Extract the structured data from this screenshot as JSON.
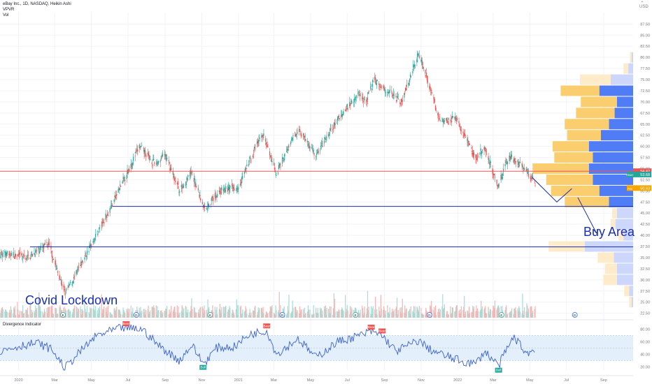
{
  "header": {
    "title": "eBay Inc., 1D, NASDAQ, Heikin Ashi",
    "indicator1": "VPVR",
    "indicator2": "Vol"
  },
  "toolbar": {
    "usd_label": "USD",
    "plus_icon": "plus-icon"
  },
  "colors": {
    "up": "#26a69a",
    "down": "#ef5350",
    "vpvr_up": "#f9c95f",
    "vpvr_down": "#3d6ef5",
    "vpvr_up_light": "#fde9c4",
    "vpvr_down_light": "#c6d3fb",
    "hline": "#1a2fb0",
    "rsi_line": "#3a5fd9",
    "rsi_band": "#e3f0fb",
    "annot": "#1a2fb0",
    "poc": "#ef5350",
    "ebay_badge": "#26a69a",
    "fee_badge": "#f7a600"
  },
  "annotations": {
    "covid": "Covid Lockdown",
    "buy_area": "Buy Area"
  },
  "price_badges": [
    {
      "price": 54.42,
      "text": "54.42",
      "color": "#ef5350"
    },
    {
      "price": 53.68,
      "text": "53.68",
      "label": "EBAY",
      "color": "#26a69a"
    },
    {
      "price": 50.63,
      "text": "50.63",
      "label": "Fee",
      "color": "#f7a600"
    }
  ],
  "divergence_panel": {
    "title": "Divergence Indicator",
    "signals": [
      {
        "label": "Bear",
        "date": "2020-06-28"
      },
      {
        "label": "Bull",
        "date": "2020-11-03"
      },
      {
        "label": "Bear",
        "date": "2021-02-17"
      },
      {
        "label": "Bear",
        "date": "2021-08-10"
      },
      {
        "label": "Bear",
        "date": "2021-08-28"
      },
      {
        "label": "Bull",
        "date": "2022-03-10"
      }
    ]
  },
  "event_markers": [
    {
      "letter": "E",
      "kind": "earnings"
    },
    {
      "letter": "D",
      "kind": "dividend"
    }
  ],
  "chart_data": {
    "type": "candlestick",
    "title": "eBay Inc., 1D, NASDAQ, Heikin Ashi",
    "y_axis": {
      "ticks": [
        "22.50",
        "25.00",
        "27.50",
        "30.00",
        "32.50",
        "35.00",
        "37.50",
        "40.00",
        "42.50",
        "45.00",
        "47.50",
        "50.00",
        "52.50",
        "55.00",
        "57.50",
        "60.00",
        "62.50",
        "65.00",
        "67.50",
        "70.00",
        "72.50",
        "75.00",
        "77.50",
        "80.00",
        "82.50",
        "85.00",
        "87.50"
      ],
      "range": [
        21.5,
        88.5
      ],
      "side": "right"
    },
    "x_axis": {
      "ticks": [
        {
          "date": "2020-01-01",
          "label": "2020"
        },
        {
          "date": "2020-03-01",
          "label": "Mar"
        },
        {
          "date": "2020-05-01",
          "label": "May"
        },
        {
          "date": "2020-07-01",
          "label": "Jul"
        },
        {
          "date": "2020-09-01",
          "label": "Sep"
        },
        {
          "date": "2020-11-01",
          "label": "Nov"
        },
        {
          "date": "2021-01-01",
          "label": "2021"
        },
        {
          "date": "2021-03-01",
          "label": "Mar"
        },
        {
          "date": "2021-05-01",
          "label": "May"
        },
        {
          "date": "2021-07-01",
          "label": "Jul"
        },
        {
          "date": "2021-09-01",
          "label": "Sep"
        },
        {
          "date": "2021-11-01",
          "label": "Nov"
        },
        {
          "date": "2022-01-01",
          "label": "2022"
        },
        {
          "date": "2022-03-01",
          "label": "Mar"
        },
        {
          "date": "2022-05-01",
          "label": "May"
        },
        {
          "date": "2022-07-01",
          "label": "Jul"
        },
        {
          "date": "2022-09-01",
          "label": "Sep"
        }
      ],
      "range": [
        "2019-12-01",
        "2022-10-20"
      ]
    },
    "price_path": [
      [
        "2019-12-01",
        36.0
      ],
      [
        "2020-01-15",
        35.0
      ],
      [
        "2020-02-20",
        38.0
      ],
      [
        "2020-03-18",
        27.0
      ],
      [
        "2020-04-01",
        30.0
      ],
      [
        "2020-05-01",
        38.0
      ],
      [
        "2020-06-01",
        46.0
      ],
      [
        "2020-07-20",
        60.0
      ],
      [
        "2020-08-15",
        56.0
      ],
      [
        "2020-09-01",
        58.0
      ],
      [
        "2020-09-25",
        50.0
      ],
      [
        "2020-10-15",
        54.0
      ],
      [
        "2020-11-05",
        46.0
      ],
      [
        "2020-12-01",
        50.0
      ],
      [
        "2020-12-31",
        51.0
      ],
      [
        "2021-02-10",
        63.0
      ],
      [
        "2021-03-05",
        54.0
      ],
      [
        "2021-04-10",
        64.0
      ],
      [
        "2021-05-10",
        58.0
      ],
      [
        "2021-06-15",
        66.0
      ],
      [
        "2021-07-20",
        72.0
      ],
      [
        "2021-08-01",
        70.0
      ],
      [
        "2021-08-15",
        75.0
      ],
      [
        "2021-09-10",
        72.0
      ],
      [
        "2021-09-30",
        70.0
      ],
      [
        "2021-10-27",
        81.0
      ],
      [
        "2021-11-10",
        76.0
      ],
      [
        "2021-12-01",
        66.0
      ],
      [
        "2021-12-31",
        66.0
      ],
      [
        "2022-01-31",
        57.0
      ],
      [
        "2022-02-15",
        60.0
      ],
      [
        "2022-03-08",
        51.0
      ],
      [
        "2022-03-29",
        58.0
      ],
      [
        "2022-04-20",
        55.0
      ],
      [
        "2022-05-10",
        52.0
      ]
    ],
    "projection_path": [
      [
        "2022-05-05",
        53.0
      ],
      [
        "2022-06-15",
        47.5
      ],
      [
        "2022-07-10",
        50.5
      ]
    ],
    "buy_arrow": [
      [
        "2022-07-20",
        48.5
      ],
      [
        "2022-08-20",
        40.5
      ]
    ],
    "horizontal_lines": [
      {
        "price": 46.5,
        "from": "2020-06-05",
        "color": "#1a2fb0"
      },
      {
        "price": 37.4,
        "from": "2020-01-20",
        "color": "#1a2fb0"
      },
      {
        "price": 54.42,
        "from": "2019-12-01",
        "color": "#ef5350"
      }
    ],
    "volume_profile": [
      {
        "price": 80.0,
        "up": 0.02,
        "down": 0.02,
        "light": true
      },
      {
        "price": 77.5,
        "up": 0.06,
        "down": 0.06,
        "light": true
      },
      {
        "price": 75.0,
        "up": 0.38,
        "down": 0.28,
        "light": true
      },
      {
        "price": 72.5,
        "up": 0.48,
        "down": 0.42
      },
      {
        "price": 70.0,
        "up": 0.45,
        "down": 0.2
      },
      {
        "price": 67.5,
        "up": 0.48,
        "down": 0.23
      },
      {
        "price": 65.0,
        "up": 0.55,
        "down": 0.3
      },
      {
        "price": 62.5,
        "up": 0.42,
        "down": 0.4
      },
      {
        "price": 60.0,
        "up": 0.45,
        "down": 0.55
      },
      {
        "price": 57.5,
        "up": 0.48,
        "down": 0.5
      },
      {
        "price": 55.0,
        "up": 0.7,
        "down": 0.55
      },
      {
        "price": 52.5,
        "up": 0.58,
        "down": 0.5
      },
      {
        "price": 50.0,
        "up": 0.6,
        "down": 0.42
      },
      {
        "price": 47.5,
        "up": 0.55,
        "down": 0.3
      },
      {
        "price": 45.0,
        "up": 0.06,
        "down": 0.2,
        "light": true
      },
      {
        "price": 42.5,
        "up": 0.06,
        "down": 0.22,
        "light": true
      },
      {
        "price": 40.0,
        "up": 0.06,
        "down": 0.12,
        "light": true
      },
      {
        "price": 37.5,
        "up": 0.45,
        "down": 0.6,
        "light": true
      },
      {
        "price": 35.0,
        "up": 0.2,
        "down": 0.24,
        "light": true
      },
      {
        "price": 32.5,
        "up": 0.15,
        "down": 0.2,
        "light": true
      },
      {
        "price": 30.0,
        "up": 0.17,
        "down": 0.2,
        "light": true
      },
      {
        "price": 27.5,
        "up": 0.06,
        "down": 0.05,
        "light": true
      },
      {
        "price": 25.0,
        "up": 0.03,
        "down": 0.02,
        "light": true
      }
    ],
    "rsi": {
      "y_ticks": [
        "20.00",
        "40.00",
        "60.00",
        "80.00"
      ],
      "range": [
        15,
        95
      ],
      "band": [
        30,
        70
      ],
      "path": [
        [
          "2019-12-01",
          45
        ],
        [
          "2020-01-10",
          55
        ],
        [
          "2020-02-01",
          58
        ],
        [
          "2020-02-25",
          48
        ],
        [
          "2020-03-18",
          18
        ],
        [
          "2020-04-10",
          42
        ],
        [
          "2020-05-10",
          70
        ],
        [
          "2020-06-20",
          82
        ],
        [
          "2020-07-25",
          80
        ],
        [
          "2020-08-20",
          55
        ],
        [
          "2020-09-10",
          40
        ],
        [
          "2020-09-25",
          30
        ],
        [
          "2020-10-15",
          55
        ],
        [
          "2020-11-04",
          25
        ],
        [
          "2020-11-25",
          50
        ],
        [
          "2020-12-25",
          52
        ],
        [
          "2021-01-20",
          72
        ],
        [
          "2021-02-17",
          78
        ],
        [
          "2021-03-05",
          40
        ],
        [
          "2021-04-10",
          65
        ],
        [
          "2021-05-10",
          35
        ],
        [
          "2021-06-15",
          60
        ],
        [
          "2021-07-15",
          68
        ],
        [
          "2021-08-10",
          76
        ],
        [
          "2021-08-28",
          70
        ],
        [
          "2021-09-20",
          45
        ],
        [
          "2021-10-28",
          62
        ],
        [
          "2021-11-15",
          48
        ],
        [
          "2021-12-10",
          38
        ],
        [
          "2022-01-10",
          28
        ],
        [
          "2022-01-31",
          25
        ],
        [
          "2022-02-15",
          45
        ],
        [
          "2022-03-10",
          22
        ],
        [
          "2022-03-25",
          50
        ],
        [
          "2022-04-05",
          68
        ],
        [
          "2022-04-25",
          42
        ],
        [
          "2022-05-10",
          46
        ]
      ]
    }
  }
}
